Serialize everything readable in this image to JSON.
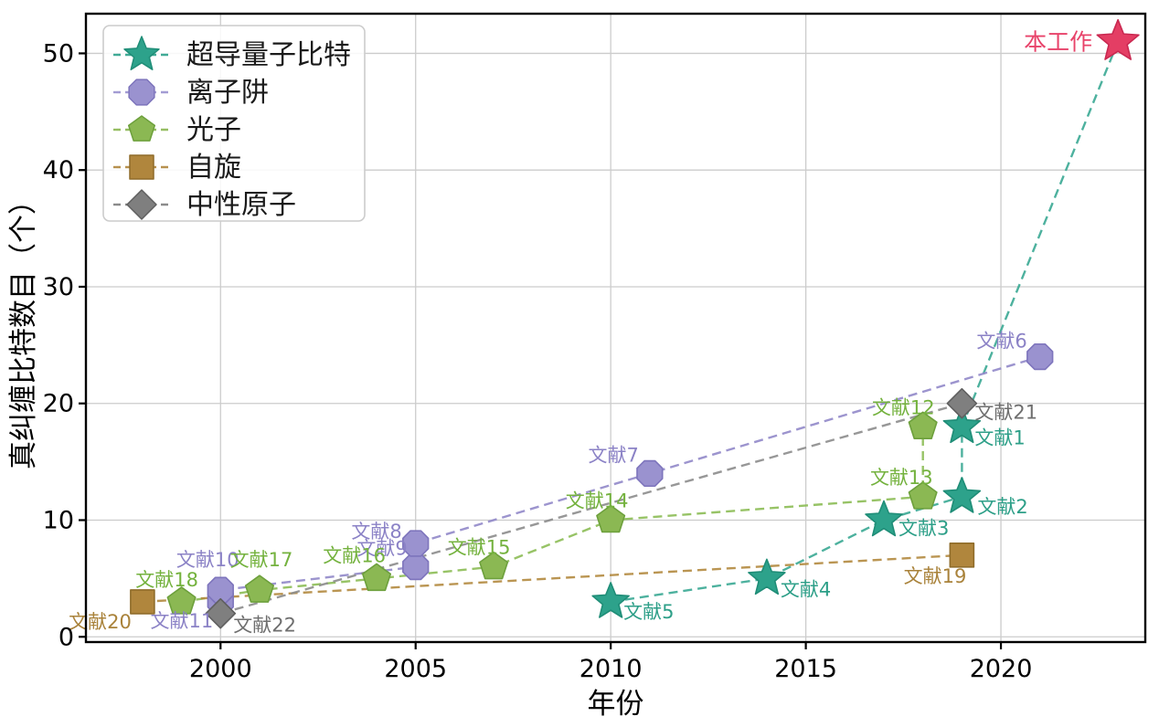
{
  "chart_data": {
    "type": "scatter",
    "title": "",
    "xlabel": "年份",
    "ylabel": "真纠缠比特数目（个）",
    "xticks": [
      2000,
      2005,
      2010,
      2015,
      2020
    ],
    "yticks": [
      0,
      10,
      20,
      30,
      40,
      50
    ],
    "xlim": [
      1996.55,
      2023.7
    ],
    "ylim": [
      -0.45,
      53.4
    ],
    "grid": true,
    "grid_color": "#cccccc",
    "line_style": "dashed",
    "legend_position": "upper-left",
    "highlight_label": "本工作",
    "series": [
      {
        "id": "superconducting-qubits",
        "name": "超导量子比特",
        "marker": "star",
        "marker_size": 21,
        "color": "#2da28b",
        "edge_color": "#1f8d77",
        "line_color": "#3aa993",
        "label_color": "#2d9f88",
        "points": [
          {
            "x": 2010,
            "y": 3,
            "label": "文献5",
            "anchor": "start",
            "dx": 14,
            "dy": 18
          },
          {
            "x": 2014,
            "y": 5,
            "label": "文献4",
            "anchor": "start",
            "dx": 15,
            "dy": 19
          },
          {
            "x": 2017,
            "y": 10,
            "label": "文献3",
            "anchor": "start",
            "dx": 16,
            "dy": 16
          },
          {
            "x": 2019,
            "y": 12,
            "label": "文献2",
            "anchor": "start",
            "dx": 17,
            "dy": 18
          },
          {
            "x": 2019,
            "y": 18,
            "label": "文献1",
            "anchor": "start",
            "dx": 14,
            "dy": 19
          },
          {
            "x": 2023,
            "y": 51,
            "label": "本工作",
            "anchor": "end",
            "dx": -28,
            "dy": 9,
            "color": "#e43e64",
            "edge_color": "#c92850",
            "marker_size": 24,
            "label_color": "#e8436a",
            "label_size": 25
          }
        ]
      },
      {
        "id": "ion-trap",
        "name": "离子阱",
        "marker": "octagon",
        "marker_size": 15,
        "color": "#9a92cf",
        "edge_color": "#7d74bc",
        "line_color": "#9188c9",
        "label_color": "#8b82c6",
        "points": [
          {
            "x": 2000,
            "y": 3,
            "label": "文献11",
            "anchor": "end",
            "dx": -8,
            "dy": 28
          },
          {
            "x": 2000,
            "y": 4,
            "label": "文献10",
            "anchor": "middle",
            "dx": -14,
            "dy": -26
          },
          {
            "x": 2005,
            "y": 6,
            "label": "文献9",
            "anchor": "end",
            "dx": -9,
            "dy": -13
          },
          {
            "x": 2005,
            "y": 8,
            "label": "文献8",
            "anchor": "end",
            "dx": -15,
            "dy": -6
          },
          {
            "x": 2011,
            "y": 14,
            "label": "文献7",
            "anchor": "end",
            "dx": -12,
            "dy": -13
          },
          {
            "x": 2021,
            "y": 24,
            "label": "文献6",
            "anchor": "end",
            "dx": -14,
            "dy": -10
          }
        ]
      },
      {
        "id": "photon",
        "name": "光子",
        "marker": "pentagon",
        "marker_size": 16,
        "color": "#8bb853",
        "edge_color": "#6da03c",
        "line_color": "#8cbc55",
        "label_color": "#74b23e",
        "points": [
          {
            "x": 1999,
            "y": 3,
            "label": "文献18",
            "anchor": "middle",
            "dx": -16,
            "dy": -17
          },
          {
            "x": 2001,
            "y": 4,
            "label": "文献17",
            "anchor": "middle",
            "dx": 2,
            "dy": -26
          },
          {
            "x": 2004,
            "y": 5,
            "label": "文献16",
            "anchor": "end",
            "dx": 10,
            "dy": -18
          },
          {
            "x": 2007,
            "y": 6,
            "label": "文献15",
            "anchor": "middle",
            "dx": -16,
            "dy": -14
          },
          {
            "x": 2010,
            "y": 10,
            "label": "文献14",
            "anchor": "middle",
            "dx": -15,
            "dy": -14
          },
          {
            "x": 2018,
            "y": 12,
            "label": "文献13",
            "anchor": "end",
            "dx": 11,
            "dy": -14
          },
          {
            "x": 2018,
            "y": 18,
            "label": "文献12",
            "anchor": "end",
            "dx": 13,
            "dy": -14
          }
        ]
      },
      {
        "id": "spin",
        "name": "自旋",
        "marker": "square",
        "marker_size": 13,
        "color": "#b0863d",
        "edge_color": "#8f6c2a",
        "line_color": "#b3893f",
        "label_color": "#a9823a",
        "points": [
          {
            "x": 1998,
            "y": 3,
            "label": "文献20",
            "anchor": "end",
            "dx": -12,
            "dy": 29
          },
          {
            "x": 2019,
            "y": 7,
            "label": "文献19",
            "anchor": "end",
            "dx": 5,
            "dy": 30
          }
        ]
      },
      {
        "id": "neutral-atom",
        "name": "中性原子",
        "marker": "diamond",
        "marker_size": 16,
        "color": "#7f7f7f",
        "edge_color": "#5f5f5f",
        "line_color": "#8c8c8c",
        "label_color": "#6e6e6e",
        "points": [
          {
            "x": 2000,
            "y": 2,
            "label": "文献22",
            "anchor": "start",
            "dx": 14,
            "dy": 20
          },
          {
            "x": 2019,
            "y": 20,
            "label": "文献21",
            "anchor": "start",
            "dx": 14,
            "dy": 17
          }
        ]
      }
    ],
    "legend": {
      "items": [
        {
          "label": "超导量子比特",
          "marker": "star",
          "color": "#2da28b",
          "edge_color": "#1f8d77"
        },
        {
          "label": "离子阱",
          "marker": "octagon",
          "color": "#9a92cf",
          "edge_color": "#7d74bc"
        },
        {
          "label": "光子",
          "marker": "pentagon",
          "color": "#8bb853",
          "edge_color": "#6da03c"
        },
        {
          "label": "自旋",
          "marker": "square",
          "color": "#b0863d",
          "edge_color": "#8f6c2a"
        },
        {
          "label": "中性原子",
          "marker": "diamond",
          "color": "#7f7f7f",
          "edge_color": "#5f5f5f"
        }
      ]
    }
  }
}
